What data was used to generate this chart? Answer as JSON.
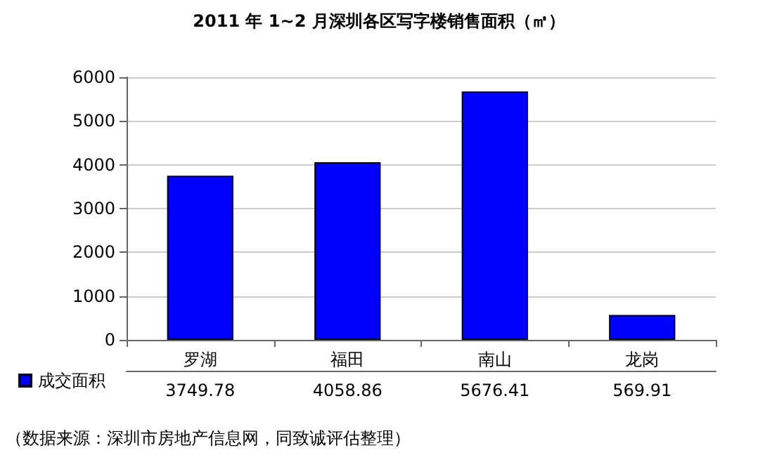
{
  "chart_data": {
    "type": "bar",
    "title": "2011 年 1~2 月深圳各区写字楼销售面积（㎡）",
    "categories": [
      "罗湖",
      "福田",
      "南山",
      "龙岗"
    ],
    "series": [
      {
        "name": "成交面积",
        "color": "#0000ff",
        "values": [
          3749.78,
          4058.86,
          5676.41,
          569.91
        ]
      }
    ],
    "ylim": [
      0,
      6000
    ],
    "yticks": [
      0,
      1000,
      2000,
      3000,
      4000,
      5000,
      6000
    ],
    "grid": "y",
    "legend": "bottom left",
    "data_labels": true,
    "annotations": [
      "（数据来源：深圳市房地产信息网，同致诚评估整理）"
    ]
  }
}
